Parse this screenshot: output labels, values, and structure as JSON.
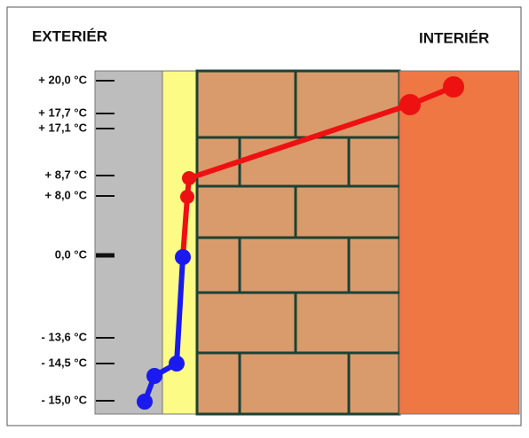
{
  "header": {
    "left": "EXTERIÉR",
    "right": "INTERIÉR"
  },
  "temperatures": [
    "+ 20,0 °C",
    "+ 17,7 °C",
    "+ 17,1 °C",
    "+ 8,7 °C",
    "+ 8,0 °C",
    "0,0 °C",
    "- 13,6 °C",
    "- 14,5 °C",
    "- 15,0 °C"
  ]
}
